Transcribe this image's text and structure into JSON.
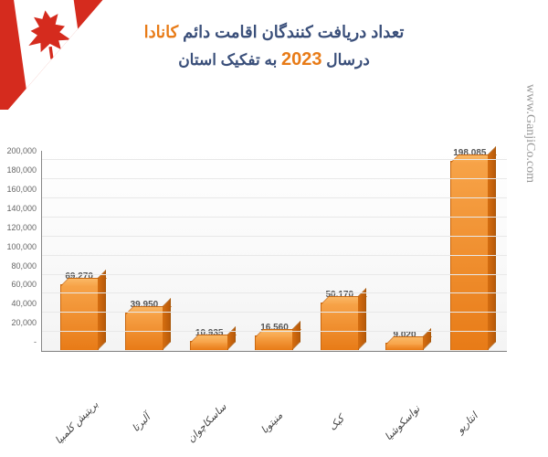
{
  "title": {
    "line1_prefix": "تعداد دریافت کنندگان اقامت دائم ",
    "line1_highlight": "کانادا",
    "line2_prefix": "درسال ",
    "line2_highlight": "2023",
    "line2_suffix": " به تفکیک استان"
  },
  "watermark": "www.GanjiCo.com",
  "chart": {
    "type": "bar",
    "ymax": 210000,
    "yticks": [
      {
        "v": 0,
        "label": "-"
      },
      {
        "v": 20000,
        "label": "20,000"
      },
      {
        "v": 40000,
        "label": "40,000"
      },
      {
        "v": 60000,
        "label": "60,000"
      },
      {
        "v": 80000,
        "label": "80,000"
      },
      {
        "v": 100000,
        "label": "100,000"
      },
      {
        "v": 120000,
        "label": "120,000"
      },
      {
        "v": 140000,
        "label": "140,000"
      },
      {
        "v": 160000,
        "label": "160,000"
      },
      {
        "v": 180000,
        "label": "180,000"
      },
      {
        "v": 200000,
        "label": "200,000"
      }
    ],
    "bars": [
      {
        "label": "بریتیش کلمبیا",
        "value": 69270,
        "display": "69,270"
      },
      {
        "label": "آلبرتا",
        "value": 39950,
        "display": "39,950"
      },
      {
        "label": "ساسکاچوان",
        "value": 10935,
        "display": "10,935"
      },
      {
        "label": "منیتوبا",
        "value": 16560,
        "display": "16,560"
      },
      {
        "label": "کبک",
        "value": 50170,
        "display": "50,170"
      },
      {
        "label": "نواسکوشیا",
        "value": 9020,
        "display": "9,020"
      },
      {
        "label": "انتاریو",
        "value": 198085,
        "display": "198,085"
      }
    ],
    "bar_color_top": "#f7a348",
    "bar_color_bottom": "#e87b17",
    "bar_border": "#c96810",
    "grid_color": "#e8e8e8",
    "background": "#ffffff",
    "title_color": "#3a4f7a",
    "highlight_color": "#e87b17",
    "label_fontsize": 11,
    "value_fontsize": 10,
    "ytick_fontsize": 9
  },
  "flag": {
    "red": "#d52b1e",
    "white": "#ffffff"
  }
}
